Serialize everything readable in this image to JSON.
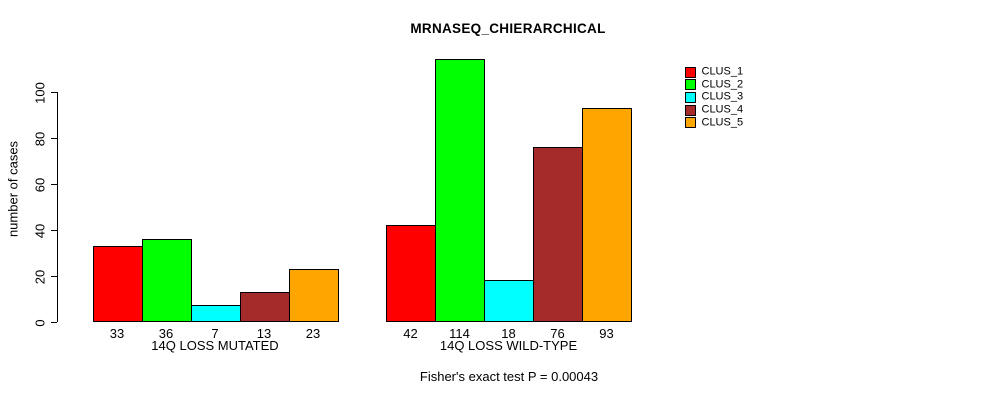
{
  "chart_data": {
    "type": "bar",
    "title": "MRNASEQ_CHIERARCHICAL",
    "ylabel": "number of cases",
    "xlabel": "",
    "categories": [
      "14Q LOSS MUTATED",
      "14Q LOSS WILD-TYPE"
    ],
    "series": [
      {
        "name": "CLUS_1",
        "color": "#FF0000",
        "values": [
          33,
          42
        ]
      },
      {
        "name": "CLUS_2",
        "color": "#00FF00",
        "values": [
          36,
          114
        ]
      },
      {
        "name": "CLUS_3",
        "color": "#00FFFF",
        "values": [
          7,
          18
        ]
      },
      {
        "name": "CLUS_4",
        "color": "#A52A2A",
        "values": [
          13,
          76
        ]
      },
      {
        "name": "CLUS_5",
        "color": "#FFA500",
        "values": [
          23,
          93
        ]
      }
    ],
    "yticks": [
      0,
      20,
      40,
      60,
      80,
      100
    ],
    "ylim": [
      0,
      115
    ],
    "grid": false,
    "value_labels_shown": true,
    "bar_border_color": "#000000",
    "legend_position": "top-right",
    "annotation": "Fisher's exact test P = 0.00043"
  }
}
